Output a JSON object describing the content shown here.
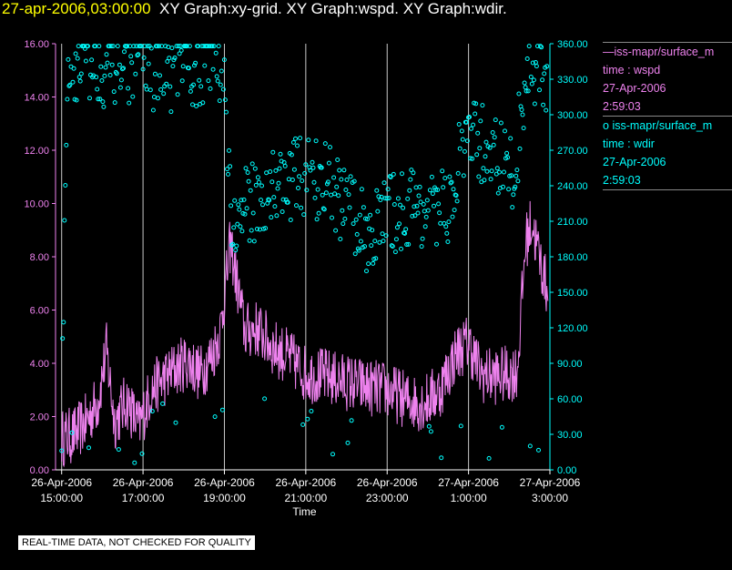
{
  "header": {
    "timestamp": "27-apr-2006,03:00:00",
    "graphs": "XY Graph:xy-grid.  XY Graph:wspd.  XY Graph:wdir."
  },
  "legend": {
    "series1": {
      "name": "iss-mapr/surface_m",
      "axis": "time : wspd",
      "date": "27-Apr-2006",
      "time": "2:59:03"
    },
    "series2": {
      "name": "iss-mapr/surface_m",
      "axis": "time : wdir",
      "date": "27-Apr-2006",
      "time": "2:59:03"
    }
  },
  "note": "REAL-TIME DATA, NOT CHECKED FOR QUALITY",
  "colors": {
    "wspd": "#ee82ee",
    "wdir": "#00ffff",
    "grid": "#c8c8c8",
    "axis": "#ffffff",
    "title_time": "#ffff00"
  },
  "chart_data": {
    "type": "line",
    "xlabel": "Time",
    "x_ticks": [
      {
        "h": 0,
        "date": "26-Apr-2006",
        "time": "15:00:00"
      },
      {
        "h": 2,
        "date": "26-Apr-2006",
        "time": "17:00:00"
      },
      {
        "h": 4,
        "date": "26-Apr-2006",
        "time": "19:00:00"
      },
      {
        "h": 6,
        "date": "26-Apr-2006",
        "time": "21:00:00"
      },
      {
        "h": 8,
        "date": "26-Apr-2006",
        "time": "23:00:00"
      },
      {
        "h": 10,
        "date": "27-Apr-2006",
        "time": "1:00:00"
      },
      {
        "h": 12,
        "date": "27-Apr-2006",
        "time": "3:00:00"
      }
    ],
    "xlim": [
      -0.15,
      12.0
    ],
    "y_left": {
      "label": "wspd",
      "ylim": [
        0,
        16
      ],
      "ticks": [
        "0.00",
        "2.00",
        "4.00",
        "6.00",
        "8.00",
        "10.00",
        "12.00",
        "14.00",
        "16.00"
      ]
    },
    "y_right": {
      "label": "wdir",
      "ylim": [
        0,
        360
      ],
      "ticks": [
        "0.00",
        "30.00",
        "60.00",
        "90.00",
        "120.00",
        "150.00",
        "180.00",
        "210.00",
        "240.00",
        "270.00",
        "300.00",
        "330.00",
        "360.00"
      ]
    },
    "wspd_profile": [
      [
        0.0,
        1.2
      ],
      [
        0.3,
        1.3
      ],
      [
        0.6,
        1.8
      ],
      [
        0.9,
        2.6
      ],
      [
        1.1,
        4.5
      ],
      [
        1.3,
        1.8
      ],
      [
        1.6,
        2.6
      ],
      [
        1.9,
        1.6
      ],
      [
        2.2,
        3.0
      ],
      [
        2.5,
        3.4
      ],
      [
        2.8,
        3.8
      ],
      [
        3.1,
        4.1
      ],
      [
        3.4,
        3.6
      ],
      [
        3.7,
        4.3
      ],
      [
        3.9,
        5.2
      ],
      [
        4.15,
        8.5
      ],
      [
        4.5,
        5.2
      ],
      [
        4.8,
        5.3
      ],
      [
        5.2,
        4.6
      ],
      [
        5.6,
        4.2
      ],
      [
        6.0,
        3.6
      ],
      [
        6.5,
        3.5
      ],
      [
        7.0,
        3.3
      ],
      [
        7.5,
        3.1
      ],
      [
        8.0,
        3.0
      ],
      [
        8.5,
        2.6
      ],
      [
        8.9,
        2.5
      ],
      [
        9.3,
        3.0
      ],
      [
        9.7,
        4.4
      ],
      [
        10.0,
        4.8
      ],
      [
        10.3,
        3.6
      ],
      [
        10.6,
        3.5
      ],
      [
        11.0,
        3.6
      ],
      [
        11.2,
        3.7
      ],
      [
        11.4,
        8.5
      ],
      [
        11.55,
        9.3
      ],
      [
        11.8,
        7.6
      ],
      [
        11.95,
        6.6
      ]
    ],
    "wspd_noise_amplitude": 1.1,
    "wdir_profile": [
      [
        0.0,
        50
      ],
      [
        0.15,
        330
      ],
      [
        0.3,
        340
      ],
      [
        0.5,
        355
      ],
      [
        0.7,
        345
      ],
      [
        0.9,
        345
      ],
      [
        1.1,
        340
      ],
      [
        1.4,
        345
      ],
      [
        1.9,
        342
      ],
      [
        2.2,
        340
      ],
      [
        2.5,
        333
      ],
      [
        2.9,
        340
      ],
      [
        3.3,
        338
      ],
      [
        3.6,
        345
      ],
      [
        3.8,
        352
      ],
      [
        4.0,
        330
      ],
      [
        4.2,
        200
      ],
      [
        4.5,
        220
      ],
      [
        4.8,
        230
      ],
      [
        5.2,
        240
      ],
      [
        5.6,
        245
      ],
      [
        6.0,
        250
      ],
      [
        6.4,
        245
      ],
      [
        6.8,
        230
      ],
      [
        7.2,
        210
      ],
      [
        7.6,
        200
      ],
      [
        8.0,
        215
      ],
      [
        8.4,
        220
      ],
      [
        8.8,
        225
      ],
      [
        9.2,
        210
      ],
      [
        9.6,
        230
      ],
      [
        9.9,
        280
      ],
      [
        10.3,
        275
      ],
      [
        10.6,
        270
      ],
      [
        11.0,
        250
      ],
      [
        11.1,
        245
      ],
      [
        11.4,
        330
      ],
      [
        11.7,
        340
      ],
      [
        11.95,
        320
      ]
    ],
    "wdir_noise_amplitude": 35
  }
}
